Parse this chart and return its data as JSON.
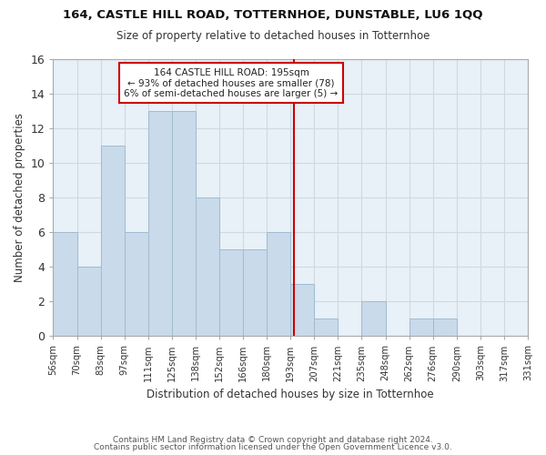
{
  "title": "164, CASTLE HILL ROAD, TOTTERNHOE, DUNSTABLE, LU6 1QQ",
  "subtitle": "Size of property relative to detached houses in Totternhoe",
  "xlabel": "Distribution of detached houses by size in Totternhoe",
  "ylabel": "Number of detached properties",
  "bar_values": [
    6,
    4,
    11,
    6,
    13,
    13,
    8,
    5,
    5,
    6,
    3,
    1,
    0,
    2,
    0,
    1,
    1,
    0,
    0,
    0
  ],
  "bar_labels": [
    "56sqm",
    "70sqm",
    "83sqm",
    "97sqm",
    "111sqm",
    "125sqm",
    "138sqm",
    "152sqm",
    "166sqm",
    "180sqm",
    "193sqm",
    "207sqm",
    "221sqm",
    "235sqm",
    "248sqm",
    "262sqm",
    "276sqm",
    "290sqm",
    "303sqm",
    "317sqm",
    "331sqm"
  ],
  "bar_color": "#c9daea",
  "bar_edge_color": "#a0bcd0",
  "grid_color": "#d0d8e0",
  "annotation_line1": "164 CASTLE HILL ROAD: 195sqm",
  "annotation_line2": "← 93% of detached houses are smaller (78)",
  "annotation_line3": "6% of semi-detached houses are larger (5) →",
  "annotation_box_edge": "#cc0000",
  "vline_color": "#cc0000",
  "vline_x": 10.15,
  "ylim": [
    0,
    16
  ],
  "yticks": [
    0,
    2,
    4,
    6,
    8,
    10,
    12,
    14,
    16
  ],
  "footer1": "Contains HM Land Registry data © Crown copyright and database right 2024.",
  "footer2": "Contains public sector information licensed under the Open Government Licence v3.0.",
  "bg_color": "#ffffff",
  "plot_bg_color": "#e8f0f8"
}
